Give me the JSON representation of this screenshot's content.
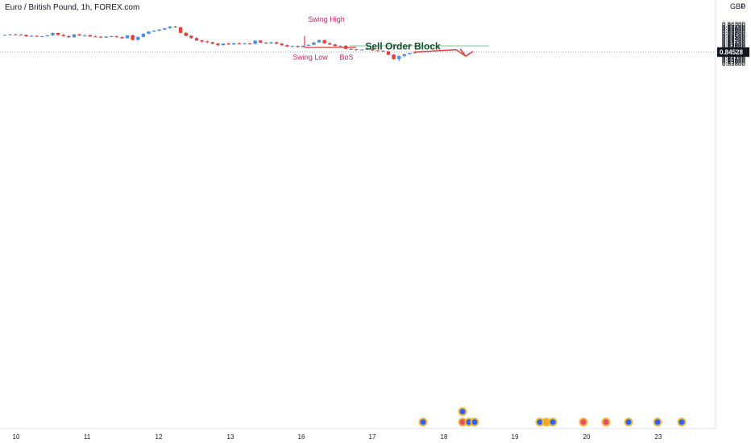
{
  "title": "Euro / British Pound, 1h, FOREX.com",
  "currency": "GBP",
  "corner_zero": "0",
  "colors": {
    "up": "#4a90e2",
    "down": "#e0403f",
    "annotation": "#d6245d",
    "arrow": "#e0403f",
    "block_fill": "#b7e4c4",
    "block_text": "#124d2a",
    "price_label_bg": "#131722"
  },
  "chart_data": {
    "type": "candlestick",
    "y_range": [
      0.8374,
      0.8642
    ],
    "y_ticks": [
      "0.86300",
      "0.86200",
      "0.86100",
      "0.86000",
      "0.85900",
      "0.85800",
      "0.85700",
      "0.85600",
      "0.85500",
      "0.85400",
      "0.85300",
      "0.85200",
      "0.85100",
      "0.85000",
      "0.84900",
      "0.84800",
      "0.84700",
      "0.84600",
      "0.84400",
      "0.84300",
      "0.84200",
      "0.84100",
      "0.84000",
      "0.83900",
      "0.83800"
    ],
    "x_ticks": [
      "10",
      "11",
      "12",
      "13",
      "16",
      "17",
      "18",
      "19",
      "20",
      "23"
    ],
    "last_price": "0.84528",
    "ohlc": [
      [
        0.856,
        0.8564,
        0.8556,
        0.8562
      ],
      [
        0.8562,
        0.8568,
        0.856,
        0.8565
      ],
      [
        0.8565,
        0.8569,
        0.8561,
        0.8564
      ],
      [
        0.8564,
        0.8567,
        0.8559,
        0.8562
      ],
      [
        0.8562,
        0.8565,
        0.8551,
        0.8553
      ],
      [
        0.8553,
        0.856,
        0.8549,
        0.8556
      ],
      [
        0.8556,
        0.8559,
        0.8548,
        0.8551
      ],
      [
        0.8551,
        0.8556,
        0.8547,
        0.8553
      ],
      [
        0.8553,
        0.8562,
        0.8551,
        0.8559
      ],
      [
        0.8559,
        0.8578,
        0.8557,
        0.8574
      ],
      [
        0.8574,
        0.8576,
        0.8559,
        0.8561
      ],
      [
        0.8561,
        0.8569,
        0.8552,
        0.8554
      ],
      [
        0.8554,
        0.856,
        0.8542,
        0.8547
      ],
      [
        0.8547,
        0.8568,
        0.8545,
        0.8565
      ],
      [
        0.8565,
        0.8571,
        0.8556,
        0.8558
      ],
      [
        0.8558,
        0.8564,
        0.855,
        0.856
      ],
      [
        0.856,
        0.8565,
        0.8549,
        0.8552
      ],
      [
        0.8552,
        0.8558,
        0.8548,
        0.855
      ],
      [
        0.855,
        0.8556,
        0.8543,
        0.8545
      ],
      [
        0.8545,
        0.8554,
        0.8542,
        0.8552
      ],
      [
        0.8552,
        0.8558,
        0.8548,
        0.8553
      ],
      [
        0.8553,
        0.8557,
        0.8544,
        0.8548
      ],
      [
        0.8548,
        0.8552,
        0.8537,
        0.8541
      ],
      [
        0.8541,
        0.8561,
        0.8538,
        0.8559
      ],
      [
        0.8559,
        0.8564,
        0.8528,
        0.853
      ],
      [
        0.853,
        0.8552,
        0.8527,
        0.8549
      ],
      [
        0.8549,
        0.8572,
        0.8546,
        0.8569
      ],
      [
        0.8569,
        0.8586,
        0.8567,
        0.8583
      ],
      [
        0.8583,
        0.8592,
        0.858,
        0.8589
      ],
      [
        0.8589,
        0.8598,
        0.8585,
        0.8596
      ],
      [
        0.8596,
        0.8606,
        0.8592,
        0.8604
      ],
      [
        0.8604,
        0.8619,
        0.8602,
        0.8614
      ],
      [
        0.8614,
        0.8621,
        0.8608,
        0.861
      ],
      [
        0.861,
        0.8613,
        0.8571,
        0.8575
      ],
      [
        0.8575,
        0.8581,
        0.8552,
        0.8556
      ],
      [
        0.8556,
        0.8559,
        0.8538,
        0.8542
      ],
      [
        0.8542,
        0.8546,
        0.8523,
        0.8527
      ],
      [
        0.8527,
        0.8531,
        0.8514,
        0.852
      ],
      [
        0.852,
        0.8526,
        0.8511,
        0.8515
      ],
      [
        0.8515,
        0.852,
        0.8502,
        0.8506
      ],
      [
        0.8506,
        0.8512,
        0.8493,
        0.8496
      ],
      [
        0.8496,
        0.8509,
        0.8494,
        0.8507
      ],
      [
        0.8507,
        0.8512,
        0.8499,
        0.8501
      ],
      [
        0.8501,
        0.8511,
        0.8499,
        0.8509
      ],
      [
        0.8509,
        0.8515,
        0.8503,
        0.8506
      ],
      [
        0.8506,
        0.8511,
        0.8501,
        0.8508
      ],
      [
        0.8508,
        0.8513,
        0.8503,
        0.8505
      ],
      [
        0.8505,
        0.8528,
        0.8503,
        0.8526
      ],
      [
        0.8526,
        0.8529,
        0.8511,
        0.8513
      ],
      [
        0.8513,
        0.8518,
        0.8506,
        0.8509
      ],
      [
        0.8509,
        0.8518,
        0.8506,
        0.8515
      ],
      [
        0.8515,
        0.852,
        0.8503,
        0.8506
      ],
      [
        0.8506,
        0.8511,
        0.8493,
        0.8496
      ],
      [
        0.8496,
        0.8501,
        0.8485,
        0.8488
      ],
      [
        0.8488,
        0.8494,
        0.8484,
        0.8491
      ],
      [
        0.8491,
        0.8495,
        0.8483,
        0.8485
      ],
      [
        0.8485,
        0.8495,
        0.8483,
        0.8493
      ],
      [
        0.8493,
        0.8501,
        0.849,
        0.8499
      ],
      [
        0.8499,
        0.8517,
        0.8497,
        0.8514
      ],
      [
        0.8514,
        0.8533,
        0.8512,
        0.8529
      ],
      [
        0.8529,
        0.8531,
        0.8506,
        0.8509
      ],
      [
        0.8509,
        0.8516,
        0.8498,
        0.8501
      ],
      [
        0.8501,
        0.8506,
        0.8489,
        0.8491
      ],
      [
        0.8491,
        0.8496,
        0.8487,
        0.8493
      ],
      [
        0.8493,
        0.8497,
        0.847,
        0.8473
      ],
      [
        0.8473,
        0.8476,
        0.8467,
        0.847
      ],
      [
        0.847,
        0.8473,
        0.8466,
        0.8468
      ],
      [
        0.8468,
        0.8471,
        0.8465,
        0.8469
      ],
      [
        0.8469,
        0.8475,
        0.8466,
        0.8473
      ],
      [
        0.8473,
        0.8476,
        0.8462,
        0.8464
      ],
      [
        0.8464,
        0.8467,
        0.8458,
        0.8461
      ],
      [
        0.8461,
        0.8464,
        0.8456,
        0.8458
      ],
      [
        0.8458,
        0.846,
        0.8432,
        0.8437
      ],
      [
        0.8437,
        0.844,
        0.8405,
        0.8409
      ],
      [
        0.8409,
        0.8433,
        0.8394,
        0.8428
      ],
      [
        0.8428,
        0.8442,
        0.8422,
        0.844
      ],
      [
        0.844,
        0.8449,
        0.8437,
        0.8446
      ],
      [
        0.8446,
        0.8454,
        0.8442,
        0.8452
      ]
    ],
    "annotations": {
      "swing_high": "Swing High",
      "swing_low": "Swing Low",
      "bos": "BoS",
      "sell_order_block": "Sell Order Block",
      "swing_high_price": 0.8533,
      "swing_low_price": 0.8483,
      "block_range": [
        0.8487,
        0.8497
      ],
      "projection_prices": [
        0.84528,
        0.8494,
        0.8427
      ]
    }
  }
}
